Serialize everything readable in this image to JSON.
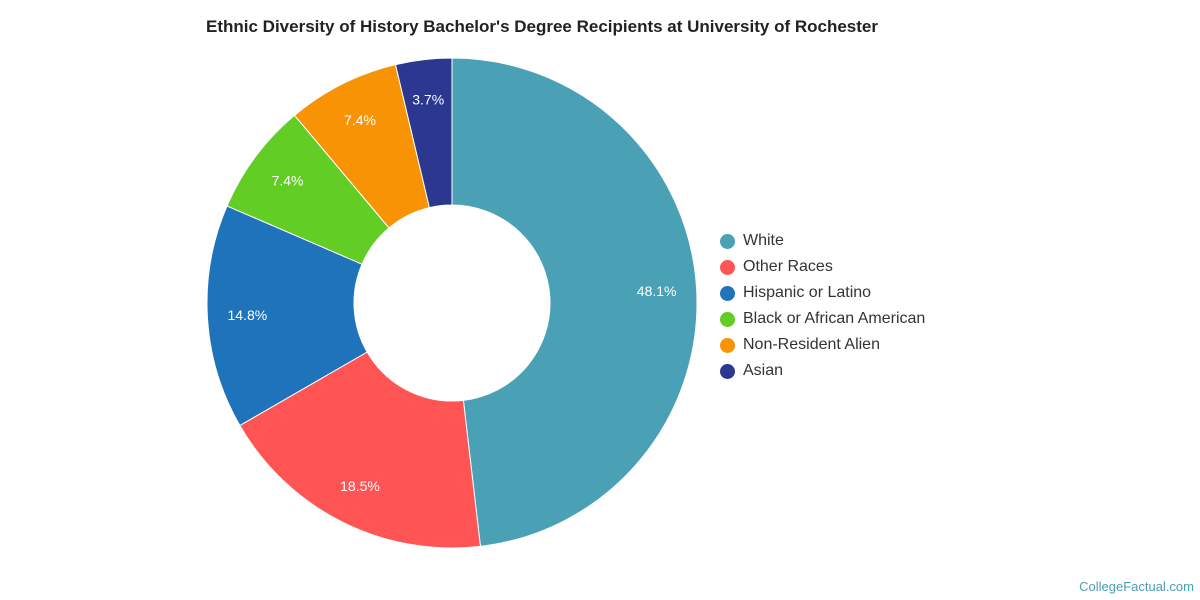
{
  "chart_data": {
    "type": "pie",
    "title": "Ethnic Diversity of History Bachelor's Degree Recipients at University of Rochester",
    "legend_position": "right",
    "categories": [
      "White",
      "Other Races",
      "Hispanic or Latino",
      "Black or African American",
      "Non-Resident Alien",
      "Asian"
    ],
    "values": [
      48.1,
      18.5,
      14.8,
      7.4,
      7.4,
      3.7
    ],
    "data_labels": [
      "48.1%",
      "18.5%",
      "14.8%",
      "7.4%",
      "7.4%",
      "3.7%"
    ],
    "colors": [
      "#4aa0b5",
      "#ff5454",
      "#1f73bb",
      "#62cd25",
      "#f89306",
      "#2c3890"
    ]
  },
  "footer": {
    "credit": "CollegeFactual.com"
  }
}
